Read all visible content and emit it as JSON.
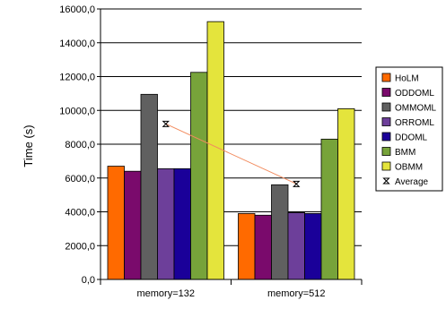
{
  "chart_data": {
    "type": "bar",
    "categories": [
      "memory=132",
      "memory=512"
    ],
    "ylabel": "Time (s)",
    "ylim": [
      0,
      16000
    ],
    "yticks": [
      "0,0",
      "2000,0",
      "4000,0",
      "6000,0",
      "8000,0",
      "10000,0",
      "12000,0",
      "14000,0",
      "16000,0"
    ],
    "grid": true,
    "legend_position": "right",
    "series": [
      {
        "name": "HoLM",
        "color": "#ff6a00",
        "values": [
          6700,
          3900
        ]
      },
      {
        "name": "ODDOML",
        "color": "#7a0a6c",
        "values": [
          6400,
          3800
        ]
      },
      {
        "name": "OMMOML",
        "color": "#606060",
        "values": [
          10950,
          5600
        ]
      },
      {
        "name": "ORROML",
        "color": "#6d3f9a",
        "values": [
          6550,
          3950
        ]
      },
      {
        "name": "DDOML",
        "color": "#1a0099",
        "values": [
          6550,
          3900
        ]
      },
      {
        "name": "BMM",
        "color": "#77a33a",
        "values": [
          12250,
          8300
        ]
      },
      {
        "name": "OBMM",
        "color": "#e4e43c",
        "values": [
          15250,
          10100
        ]
      }
    ],
    "line_series": {
      "name": "Average",
      "color": "#f28b5e",
      "values": [
        9200,
        5650
      ]
    }
  }
}
